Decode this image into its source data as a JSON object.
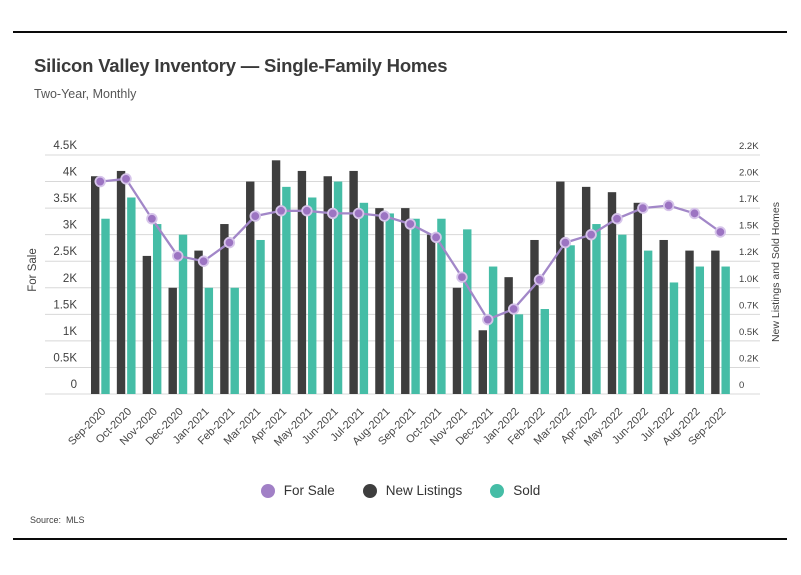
{
  "header": {
    "title": "Silicon Valley Inventory — Single-Family Homes",
    "subtitle": "Two-Year, Monthly"
  },
  "source": {
    "label": "Source:",
    "value": "MLS"
  },
  "legend": [
    {
      "label": "For Sale",
      "color": "#a180c6"
    },
    {
      "label": "New Listings",
      "color": "#3e3e3e"
    },
    {
      "label": "Sold",
      "color": "#45bda6"
    }
  ],
  "chart_data": {
    "type": "bar",
    "subtype": "grouped bars with overlaid line",
    "title": "Silicon Valley Inventory — Single-Family Homes",
    "subtitle": "Two-Year, Monthly",
    "grid": true,
    "legend_position": "bottom",
    "categories": [
      "Sep-2020",
      "Oct-2020",
      "Nov-2020",
      "Dec-2020",
      "Jan-2021",
      "Feb-2021",
      "Mar-2021",
      "Apr-2021",
      "May-2021",
      "Jun-2021",
      "Jul-2021",
      "Aug-2021",
      "Sep-2021",
      "Oct-2021",
      "Nov-2021",
      "Dec-2021",
      "Jan-2022",
      "Feb-2022",
      "Mar-2022",
      "Apr-2022",
      "May-2022",
      "Jun-2022",
      "Jul-2022",
      "Aug-2022",
      "Sep-2022"
    ],
    "series": [
      {
        "name": "For Sale",
        "type": "line",
        "axis": "left",
        "color": "#a287c8",
        "marker_fill": "#9c74c2",
        "marker_stroke": "#d6c4ea",
        "values": [
          4000,
          4050,
          3300,
          2600,
          2500,
          2850,
          3350,
          3450,
          3450,
          3400,
          3400,
          3350,
          3200,
          2950,
          2200,
          1400,
          1600,
          2150,
          2850,
          3000,
          3300,
          3500,
          3550,
          3400,
          3050
        ]
      },
      {
        "name": "New Listings",
        "type": "bar",
        "axis": "right",
        "color": "#3e3e3e",
        "values": [
          2050,
          2100,
          1300,
          1000,
          1350,
          1600,
          2000,
          2200,
          2100,
          2050,
          2100,
          1750,
          1750,
          1500,
          1000,
          600,
          1100,
          1450,
          2000,
          1950,
          1900,
          1800,
          1450,
          1350,
          1350
        ]
      },
      {
        "name": "Sold",
        "type": "bar",
        "axis": "right",
        "color": "#45bda6",
        "values": [
          1650,
          1850,
          1600,
          1500,
          1000,
          1000,
          1450,
          1950,
          1850,
          2000,
          1800,
          1700,
          1650,
          1650,
          1550,
          1200,
          750,
          800,
          1400,
          1600,
          1500,
          1350,
          1050,
          1200,
          1200
        ]
      }
    ],
    "left_axis": {
      "title": "For Sale",
      "max": 4500,
      "tick_step": 500,
      "ticks": [
        "0",
        "0.5K",
        "1K",
        "1.5K",
        "2K",
        "2.5K",
        "3K",
        "3.5K",
        "4K",
        "4.5K"
      ]
    },
    "right_axis": {
      "title": "New Listings and Sold Homes",
      "max": 2250,
      "tick_step": 250,
      "ticks": [
        "0",
        "0.2K",
        "0.5K",
        "0.7K",
        "1.0K",
        "1.2K",
        "1.5K",
        "1.7K",
        "2.0K",
        "2.2K"
      ]
    },
    "grid_color": "#d8d8d8",
    "tick_label_color": "#3f3f3f",
    "x_label_color": "#464646"
  }
}
